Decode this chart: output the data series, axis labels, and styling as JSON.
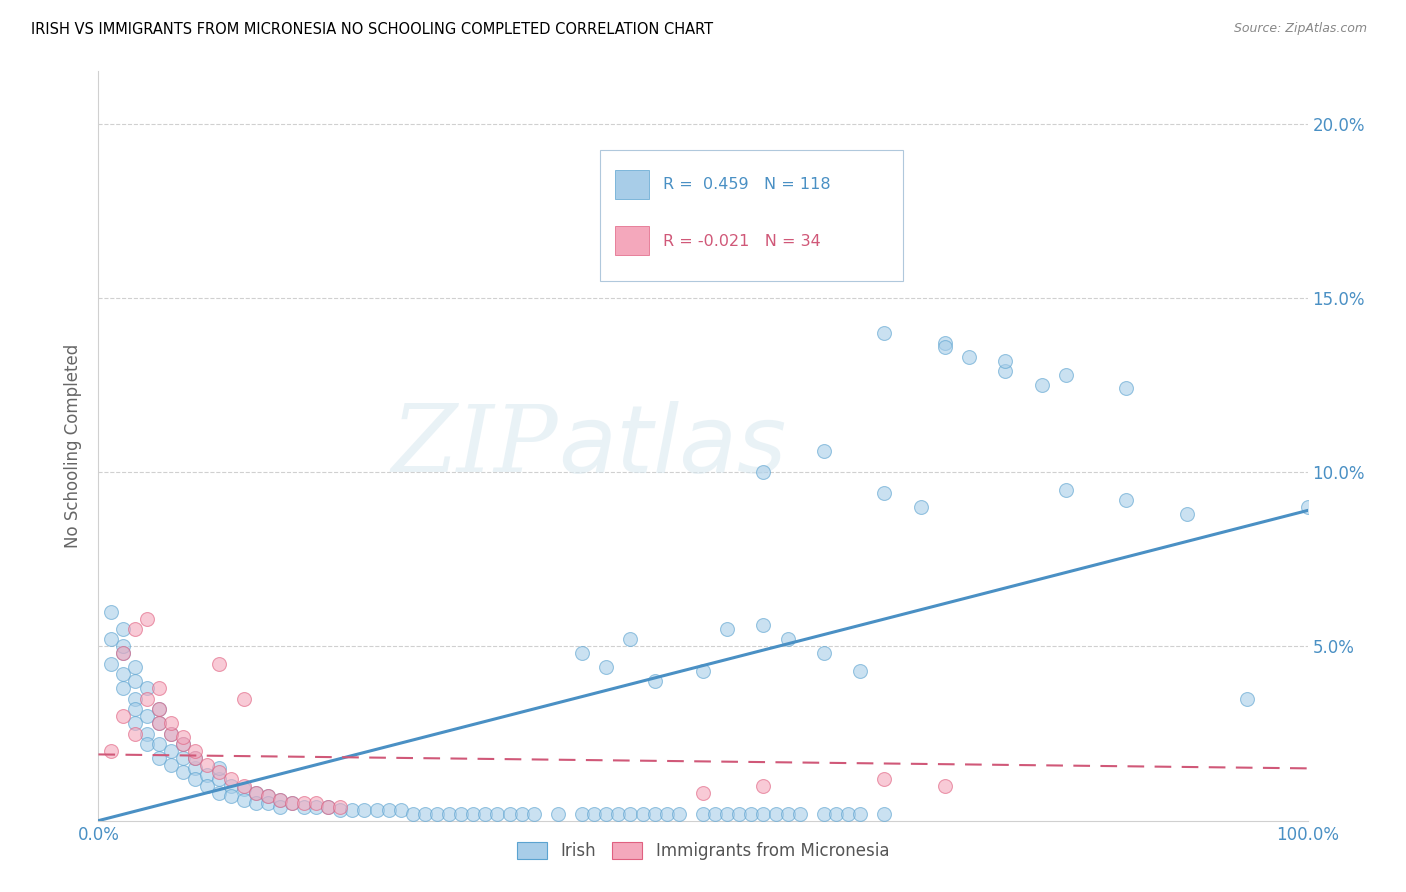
{
  "title": "IRISH VS IMMIGRANTS FROM MICRONESIA NO SCHOOLING COMPLETED CORRELATION CHART",
  "source": "Source: ZipAtlas.com",
  "ylabel": "No Schooling Completed",
  "ylim": [
    0,
    0.215
  ],
  "xlim": [
    0,
    1.0
  ],
  "yticks": [
    0.0,
    0.05,
    0.1,
    0.15,
    0.2
  ],
  "ytick_labels": [
    "",
    "5.0%",
    "10.0%",
    "15.0%",
    "20.0%"
  ],
  "legend_blue_r": "0.459",
  "legend_blue_n": "118",
  "legend_pink_r": "-0.021",
  "legend_pink_n": "34",
  "blue_color": "#a8cde8",
  "pink_color": "#f4a8bc",
  "blue_edge_color": "#5ba3d0",
  "pink_edge_color": "#e06080",
  "blue_line_color": "#4a90c4",
  "pink_line_color": "#d05878",
  "grid_color": "#d0d0d0",
  "blue_scatter_x": [
    0.01,
    0.01,
    0.01,
    0.02,
    0.02,
    0.02,
    0.02,
    0.02,
    0.03,
    0.03,
    0.03,
    0.03,
    0.03,
    0.04,
    0.04,
    0.04,
    0.04,
    0.05,
    0.05,
    0.05,
    0.05,
    0.06,
    0.06,
    0.06,
    0.07,
    0.07,
    0.07,
    0.08,
    0.08,
    0.08,
    0.09,
    0.09,
    0.1,
    0.1,
    0.1,
    0.11,
    0.11,
    0.12,
    0.12,
    0.13,
    0.13,
    0.14,
    0.14,
    0.15,
    0.15,
    0.16,
    0.17,
    0.18,
    0.19,
    0.2,
    0.21,
    0.22,
    0.23,
    0.24,
    0.25,
    0.26,
    0.27,
    0.28,
    0.29,
    0.3,
    0.31,
    0.32,
    0.33,
    0.34,
    0.35,
    0.36,
    0.38,
    0.4,
    0.41,
    0.42,
    0.43,
    0.44,
    0.45,
    0.46,
    0.47,
    0.48,
    0.5,
    0.51,
    0.52,
    0.53,
    0.54,
    0.55,
    0.56,
    0.57,
    0.58,
    0.6,
    0.61,
    0.62,
    0.63,
    0.65,
    0.4,
    0.42,
    0.44,
    0.46,
    0.5,
    0.52,
    0.55,
    0.57,
    0.6,
    0.63,
    0.65,
    0.68,
    0.7,
    0.72,
    0.75,
    0.78,
    0.8,
    0.85,
    0.9,
    0.95,
    0.55,
    0.6,
    0.65,
    0.7,
    0.75,
    0.8,
    0.85,
    1.0
  ],
  "blue_scatter_y": [
    0.052,
    0.045,
    0.06,
    0.048,
    0.042,
    0.038,
    0.055,
    0.05,
    0.04,
    0.035,
    0.044,
    0.032,
    0.028,
    0.03,
    0.025,
    0.038,
    0.022,
    0.028,
    0.022,
    0.018,
    0.032,
    0.02,
    0.016,
    0.025,
    0.018,
    0.014,
    0.022,
    0.015,
    0.012,
    0.018,
    0.013,
    0.01,
    0.012,
    0.008,
    0.015,
    0.01,
    0.007,
    0.009,
    0.006,
    0.008,
    0.005,
    0.007,
    0.005,
    0.006,
    0.004,
    0.005,
    0.004,
    0.004,
    0.004,
    0.003,
    0.003,
    0.003,
    0.003,
    0.003,
    0.003,
    0.002,
    0.002,
    0.002,
    0.002,
    0.002,
    0.002,
    0.002,
    0.002,
    0.002,
    0.002,
    0.002,
    0.002,
    0.002,
    0.002,
    0.002,
    0.002,
    0.002,
    0.002,
    0.002,
    0.002,
    0.002,
    0.002,
    0.002,
    0.002,
    0.002,
    0.002,
    0.002,
    0.002,
    0.002,
    0.002,
    0.002,
    0.002,
    0.002,
    0.002,
    0.002,
    0.048,
    0.044,
    0.052,
    0.04,
    0.043,
    0.055,
    0.056,
    0.052,
    0.048,
    0.043,
    0.094,
    0.09,
    0.137,
    0.133,
    0.129,
    0.125,
    0.095,
    0.092,
    0.088,
    0.035,
    0.1,
    0.106,
    0.14,
    0.136,
    0.132,
    0.128,
    0.124,
    0.09
  ],
  "pink_scatter_x": [
    0.01,
    0.02,
    0.02,
    0.03,
    0.03,
    0.04,
    0.04,
    0.05,
    0.05,
    0.06,
    0.07,
    0.08,
    0.09,
    0.1,
    0.11,
    0.12,
    0.13,
    0.14,
    0.15,
    0.16,
    0.17,
    0.18,
    0.19,
    0.2,
    0.05,
    0.06,
    0.07,
    0.08,
    0.1,
    0.12,
    0.5,
    0.55,
    0.65,
    0.7
  ],
  "pink_scatter_y": [
    0.02,
    0.03,
    0.048,
    0.025,
    0.055,
    0.035,
    0.058,
    0.028,
    0.038,
    0.025,
    0.022,
    0.018,
    0.016,
    0.014,
    0.012,
    0.01,
    0.008,
    0.007,
    0.006,
    0.005,
    0.005,
    0.005,
    0.004,
    0.004,
    0.032,
    0.028,
    0.024,
    0.02,
    0.045,
    0.035,
    0.008,
    0.01,
    0.012,
    0.01
  ],
  "blue_line_x": [
    0.0,
    1.0
  ],
  "blue_line_y": [
    0.0,
    0.089
  ],
  "pink_line_x": [
    0.0,
    1.0
  ],
  "pink_line_y": [
    0.019,
    0.015
  ]
}
